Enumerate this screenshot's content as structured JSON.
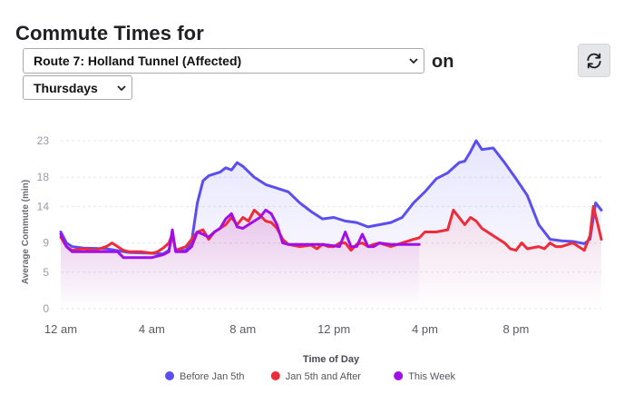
{
  "header": {
    "title": "Commute Times for",
    "route_selected": "Route 7: Holland Tunnel (Affected)",
    "on_label": "on",
    "day_selected": "Thursdays",
    "refresh_icon": "refresh-icon"
  },
  "chart_data": {
    "type": "area",
    "xlabel": "Time of Day",
    "ylabel": "Average Commute (min)",
    "x_tick_labels": [
      "12 am",
      "4 am",
      "8 am",
      "12 pm",
      "4 pm",
      "8 pm"
    ],
    "x_ticks_hours": [
      0,
      4,
      8,
      12,
      16,
      20
    ],
    "y_ticks": [
      0,
      5,
      9,
      14,
      18,
      23
    ],
    "ylim": [
      0,
      23
    ],
    "xlim_hours": [
      0,
      23.75
    ],
    "grid": true,
    "legend_position": "bottom-center",
    "series": [
      {
        "name": "Before Jan 5th",
        "color": "#5b4ef0",
        "points": [
          [
            0,
            10.5
          ],
          [
            0.25,
            9
          ],
          [
            0.5,
            8.5
          ],
          [
            1,
            8.3
          ],
          [
            2,
            8.2
          ],
          [
            3,
            7.7
          ],
          [
            4,
            7.6
          ],
          [
            4.5,
            7.5
          ],
          [
            4.75,
            8
          ],
          [
            4.9,
            10.2
          ],
          [
            5.05,
            8
          ],
          [
            5.5,
            8
          ],
          [
            5.75,
            9.2
          ],
          [
            6,
            14.5
          ],
          [
            6.25,
            17.5
          ],
          [
            6.5,
            18.2
          ],
          [
            7,
            18.7
          ],
          [
            7.25,
            19.3
          ],
          [
            7.5,
            19
          ],
          [
            7.75,
            20
          ],
          [
            8,
            19.5
          ],
          [
            8.5,
            18
          ],
          [
            9,
            17
          ],
          [
            9.5,
            16.5
          ],
          [
            10,
            16
          ],
          [
            10.5,
            14.5
          ],
          [
            11,
            13.3
          ],
          [
            11.5,
            12.3
          ],
          [
            12,
            12.5
          ],
          [
            12.5,
            12
          ],
          [
            13,
            11.8
          ],
          [
            13.5,
            11.2
          ],
          [
            14,
            11.5
          ],
          [
            14.5,
            11.8
          ],
          [
            15,
            12.5
          ],
          [
            15.5,
            14.5
          ],
          [
            16,
            16
          ],
          [
            16.5,
            17.8
          ],
          [
            17,
            18.6
          ],
          [
            17.5,
            20
          ],
          [
            17.75,
            20.2
          ],
          [
            18,
            21.5
          ],
          [
            18.25,
            23
          ],
          [
            18.5,
            21.8
          ],
          [
            19,
            22
          ],
          [
            19.5,
            20
          ],
          [
            20,
            17.8
          ],
          [
            20.5,
            15.5
          ],
          [
            21,
            11.5
          ],
          [
            21.5,
            9.5
          ],
          [
            22,
            9.3
          ],
          [
            22.5,
            9.2
          ],
          [
            23,
            8.9
          ],
          [
            23.25,
            9.5
          ],
          [
            23.5,
            14.5
          ],
          [
            23.75,
            13.5
          ]
        ]
      },
      {
        "name": "Jan 5th and After",
        "color": "#ef2b3a",
        "points": [
          [
            0,
            9.8
          ],
          [
            0.25,
            8.5
          ],
          [
            0.5,
            8
          ],
          [
            1,
            8.2
          ],
          [
            1.5,
            8
          ],
          [
            2,
            8.5
          ],
          [
            2.25,
            9
          ],
          [
            2.5,
            8.5
          ],
          [
            2.75,
            8
          ],
          [
            3,
            7.8
          ],
          [
            3.5,
            7.8
          ],
          [
            4,
            7.6
          ],
          [
            4.25,
            7.8
          ],
          [
            4.5,
            8.3
          ],
          [
            4.75,
            9
          ],
          [
            4.9,
            10.2
          ],
          [
            5.05,
            8
          ],
          [
            5.5,
            8.5
          ],
          [
            5.75,
            9.5
          ],
          [
            6,
            10.5
          ],
          [
            6.25,
            10.8
          ],
          [
            6.5,
            9.5
          ],
          [
            6.75,
            10.5
          ],
          [
            7,
            11
          ],
          [
            7.25,
            11.5
          ],
          [
            7.5,
            12.5
          ],
          [
            7.75,
            11.5
          ],
          [
            8,
            12.5
          ],
          [
            8.25,
            12
          ],
          [
            8.5,
            13.5
          ],
          [
            8.75,
            12.8
          ],
          [
            9,
            12
          ],
          [
            9.25,
            11.8
          ],
          [
            9.5,
            11
          ],
          [
            9.75,
            9.5
          ],
          [
            10,
            8.8
          ],
          [
            10.5,
            8.5
          ],
          [
            11,
            8.7
          ],
          [
            11.25,
            8.2
          ],
          [
            11.5,
            8.8
          ],
          [
            11.75,
            8.5
          ],
          [
            12,
            8.5
          ],
          [
            12.25,
            9
          ],
          [
            12.5,
            9
          ],
          [
            12.75,
            8
          ],
          [
            13,
            8.8
          ],
          [
            13.25,
            9
          ],
          [
            13.5,
            8.5
          ],
          [
            13.75,
            8.8
          ],
          [
            14,
            9
          ],
          [
            14.5,
            8.5
          ],
          [
            15,
            9
          ],
          [
            15.5,
            9.5
          ],
          [
            15.75,
            9.7
          ],
          [
            16,
            10.5
          ],
          [
            16.5,
            10.5
          ],
          [
            17,
            10.8
          ],
          [
            17.25,
            13.5
          ],
          [
            17.5,
            12.5
          ],
          [
            17.75,
            11.5
          ],
          [
            18,
            12.5
          ],
          [
            18.25,
            12
          ],
          [
            18.5,
            11
          ],
          [
            19,
            10
          ],
          [
            19.5,
            9
          ],
          [
            19.75,
            8.2
          ],
          [
            20,
            8
          ],
          [
            20.25,
            9
          ],
          [
            20.5,
            8.2
          ],
          [
            21,
            8.5
          ],
          [
            21.25,
            8.2
          ],
          [
            21.5,
            9
          ],
          [
            21.75,
            8.5
          ],
          [
            22,
            8.5
          ],
          [
            22.5,
            9
          ],
          [
            22.75,
            8.5
          ],
          [
            23,
            8
          ],
          [
            23.25,
            10
          ],
          [
            23.4,
            14
          ],
          [
            23.6,
            11.5
          ],
          [
            23.75,
            9.5
          ]
        ]
      },
      {
        "name": "This Week",
        "color": "#a10ee8",
        "points": [
          [
            0,
            10.2
          ],
          [
            0.25,
            8.5
          ],
          [
            0.5,
            7.8
          ],
          [
            1,
            7.8
          ],
          [
            1.5,
            7.8
          ],
          [
            2,
            7.8
          ],
          [
            2.5,
            7.8
          ],
          [
            2.75,
            7
          ],
          [
            3,
            7
          ],
          [
            3.5,
            7
          ],
          [
            4,
            7
          ],
          [
            4.5,
            7.4
          ],
          [
            4.75,
            7.8
          ],
          [
            4.9,
            10.8
          ],
          [
            5.05,
            7.8
          ],
          [
            5.5,
            7.8
          ],
          [
            5.75,
            8.5
          ],
          [
            6,
            10.5
          ],
          [
            6.25,
            10.2
          ],
          [
            6.5,
            9.8
          ],
          [
            6.75,
            10.5
          ],
          [
            7,
            11
          ],
          [
            7.25,
            12.3
          ],
          [
            7.5,
            13
          ],
          [
            7.75,
            11.2
          ],
          [
            8,
            11
          ],
          [
            8.5,
            12
          ],
          [
            8.75,
            12.5
          ],
          [
            9,
            13.5
          ],
          [
            9.25,
            13
          ],
          [
            9.5,
            11.5
          ],
          [
            9.75,
            9
          ],
          [
            10,
            8.8
          ],
          [
            10.5,
            8.8
          ],
          [
            11,
            8.8
          ],
          [
            11.5,
            8.8
          ],
          [
            12,
            8.6
          ],
          [
            12.25,
            8.5
          ],
          [
            12.5,
            10.5
          ],
          [
            12.75,
            8.5
          ],
          [
            13,
            8.5
          ],
          [
            13.25,
            10.2
          ],
          [
            13.5,
            8.5
          ],
          [
            13.75,
            8.5
          ],
          [
            14,
            9
          ],
          [
            14.5,
            8.8
          ],
          [
            15,
            8.8
          ],
          [
            15.5,
            8.8
          ],
          [
            15.75,
            8.8
          ]
        ]
      }
    ]
  }
}
